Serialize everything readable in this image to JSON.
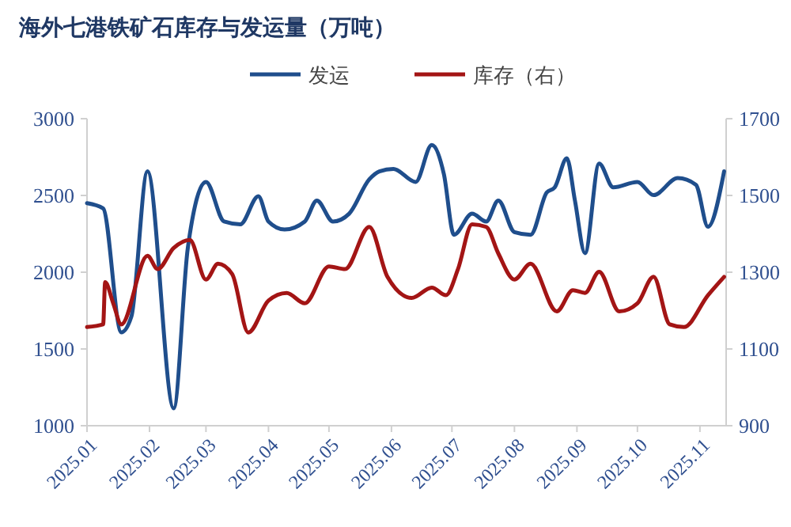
{
  "chart_data": {
    "type": "line",
    "title": "海外七港铁矿石库存与发运量（万吨）",
    "legend": "top",
    "line_style": "solid",
    "marker": "none",
    "x": [
      "2025-01-01",
      "2025-01-09",
      "2025-01-18",
      "2025-01-23",
      "2025-01-31",
      "2025-02-13",
      "2025-02-20",
      "2025-03-01",
      "2025-03-10",
      "2025-03-18",
      "2025-03-27",
      "2025-04-01",
      "2025-04-09",
      "2025-04-19",
      "2025-04-25",
      "2025-05-03",
      "2025-05-11",
      "2025-05-21",
      "2025-05-26",
      "2025-06-02",
      "2025-06-13",
      "2025-06-21",
      "2025-06-27",
      "2025-07-02",
      "2025-07-11",
      "2025-07-18",
      "2025-07-24",
      "2025-08-01",
      "2025-08-09",
      "2025-08-17",
      "2025-08-21",
      "2025-08-27",
      "2025-08-31",
      "2025-09-05",
      "2025-09-12",
      "2025-09-19",
      "2025-10-01",
      "2025-10-09",
      "2025-10-21",
      "2025-10-30",
      "2025-11-05",
      "2025-11-13"
    ],
    "series": [
      {
        "name": "发运",
        "color": "#1f4e8c",
        "values": [
          2450,
          2416,
          1608,
          1711,
          2657,
          1113,
          2158,
          2588,
          2330,
          2312,
          2495,
          2330,
          2278,
          2330,
          2467,
          2330,
          2381,
          2605,
          2657,
          2673,
          2588,
          2828,
          2639,
          2244,
          2381,
          2330,
          2467,
          2261,
          2244,
          2519,
          2553,
          2742,
          2467,
          2124,
          2708,
          2553,
          2588,
          2502,
          2613,
          2570,
          2296,
          2657
        ]
      },
      {
        "name": "库存（右）",
        "color": "#a31515",
        "axis": "y2",
        "x": [
          "2025-01-01",
          "2025-01-09",
          "2025-01-10",
          "2025-01-14",
          "2025-01-18",
          "2025-01-31",
          "2025-02-05",
          "2025-02-13",
          "2025-02-21",
          "2025-03-01",
          "2025-03-07",
          "2025-03-14",
          "2025-03-22",
          "2025-04-01",
          "2025-04-10",
          "2025-04-19",
          "2025-05-01",
          "2025-05-09",
          "2025-05-21",
          "2025-05-30",
          "2025-06-11",
          "2025-06-21",
          "2025-06-28",
          "2025-07-04",
          "2025-07-11",
          "2025-07-18",
          "2025-07-24",
          "2025-08-01",
          "2025-08-09",
          "2025-08-22",
          "2025-08-30",
          "2025-09-05",
          "2025-09-12",
          "2025-09-22",
          "2025-10-01",
          "2025-10-09",
          "2025-10-17",
          "2025-10-24",
          "2025-11-05",
          "2025-11-13"
        ],
        "values": [
          1157,
          1164,
          1274,
          1219,
          1164,
          1343,
          1308,
          1363,
          1384,
          1281,
          1322,
          1295,
          1143,
          1226,
          1246,
          1219,
          1315,
          1308,
          1418,
          1288,
          1233,
          1260,
          1240,
          1308,
          1425,
          1418,
          1349,
          1281,
          1322,
          1198,
          1253,
          1246,
          1301,
          1198,
          1219,
          1288,
          1164,
          1157,
          1240,
          1288
        ]
      }
    ],
    "xlim": [
      "2025-01-01",
      "2025-11-14"
    ],
    "xticks": [
      {
        "value": "2025-01-01",
        "label": "2025.01"
      },
      {
        "value": "2025-02-01",
        "label": "2025.02"
      },
      {
        "value": "2025-03-01",
        "label": "2025.03"
      },
      {
        "value": "2025-04-01",
        "label": "2025.04"
      },
      {
        "value": "2025-05-01",
        "label": "2025.05"
      },
      {
        "value": "2025-06-01",
        "label": "2025.06"
      },
      {
        "value": "2025-07-01",
        "label": "2025.07"
      },
      {
        "value": "2025-08-01",
        "label": "2025.08"
      },
      {
        "value": "2025-09-01",
        "label": "2025.09"
      },
      {
        "value": "2025-10-01",
        "label": "2025.10"
      },
      {
        "value": "2025-11-01",
        "label": "2025.11"
      }
    ],
    "ylim": [
      1000,
      3000
    ],
    "yticks": [
      1000,
      1500,
      2000,
      2500,
      3000
    ],
    "y2lim": [
      900,
      1700
    ],
    "y2ticks": [
      900,
      1100,
      1300,
      1500,
      1700
    ]
  }
}
